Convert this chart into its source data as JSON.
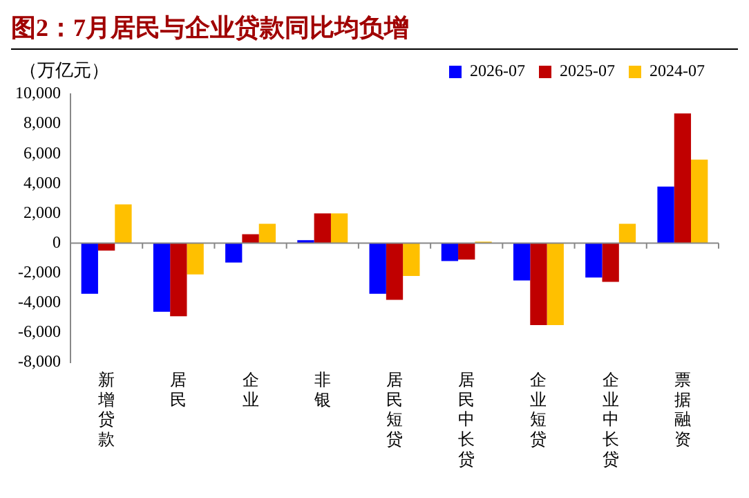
{
  "chart_data": {
    "type": "bar",
    "title": "图2：7月居民与企业贷款同比均负增",
    "ylabel": "（万亿元）",
    "categories": [
      "新增贷款",
      "居民",
      "企业",
      "非银",
      "居民短贷",
      "居民中长贷",
      "企业短贷",
      "企业中长贷",
      "票据融资"
    ],
    "series": [
      {
        "name": "2026-07",
        "color": "#0000ff",
        "values": [
          -3400,
          -4600,
          -1300,
          200,
          -3400,
          -1200,
          -2500,
          -2300,
          3800
        ]
      },
      {
        "name": "2025-07",
        "color": "#c00000",
        "values": [
          -500,
          -4900,
          600,
          2000,
          -3800,
          -1100,
          -5500,
          -2600,
          8700
        ]
      },
      {
        "name": "2024-07",
        "color": "#ffc000",
        "values": [
          2600,
          -2100,
          1300,
          2000,
          -2200,
          100,
          -5500,
          1300,
          5600
        ]
      }
    ],
    "ylim": [
      -8000,
      10000
    ],
    "yticks": [
      {
        "value": -8000,
        "label": "-8,000"
      },
      {
        "value": -6000,
        "label": "-6,000"
      },
      {
        "value": -4000,
        "label": "-4,000"
      },
      {
        "value": -2000,
        "label": "-2,000"
      },
      0,
      {
        "value": 2000,
        "label": "2,000"
      },
      {
        "value": 4000,
        "label": "4,000"
      },
      {
        "value": 6000,
        "label": "6,000"
      },
      {
        "value": 8000,
        "label": "8,000"
      },
      {
        "value": 10000,
        "label": "10,000"
      }
    ],
    "legend": "top right"
  }
}
